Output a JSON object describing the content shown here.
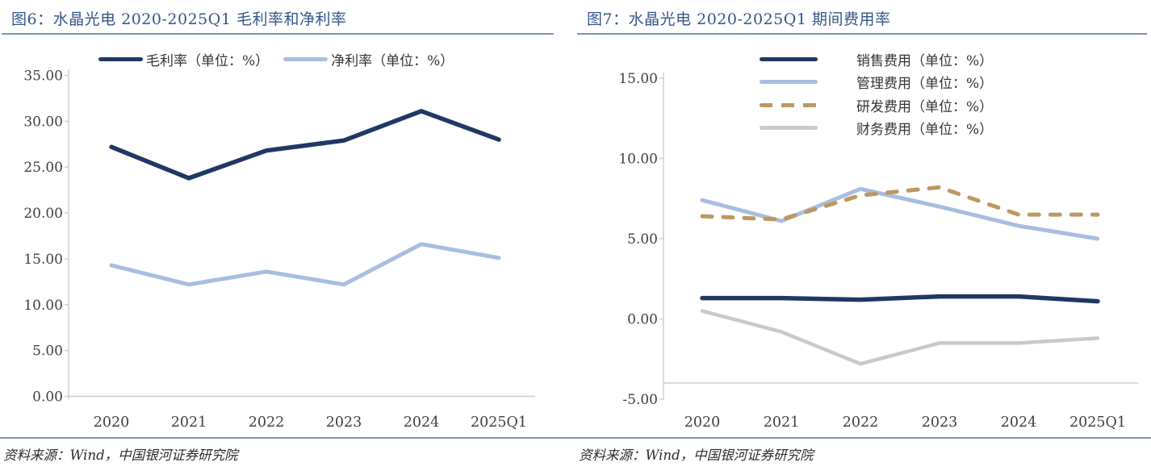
{
  "source_note": "资料来源：Wind，中国银河证券研究院",
  "chart_data": [
    {
      "type": "line",
      "title": "图6：水晶光电 2020-2025Q1 毛利率和净利率",
      "categories": [
        "2020",
        "2021",
        "2022",
        "2023",
        "2024",
        "2025Q1"
      ],
      "series": [
        {
          "name": "毛利率（单位：%）",
          "values": [
            27.2,
            23.8,
            26.8,
            27.9,
            31.1,
            28.0
          ],
          "color": "#1F3864",
          "style": "solid"
        },
        {
          "name": "净利率（单位：%）",
          "values": [
            14.3,
            12.2,
            13.6,
            12.2,
            16.6,
            15.1
          ],
          "color": "#A9BDE1",
          "style": "solid"
        }
      ],
      "ylim": [
        0,
        35
      ],
      "ytick_interval": 5,
      "ytick_labels": [
        "35.00",
        "30.00",
        "25.00",
        "20.00",
        "15.00",
        "10.00",
        "5.00",
        "0.00"
      ],
      "legend_position": "top-horizontal",
      "grid": false,
      "source": "资料来源：Wind，中国银河证券研究院"
    },
    {
      "type": "line",
      "title": "图7：水晶光电 2020-2025Q1 期间费用率",
      "categories": [
        "2020",
        "2021",
        "2022",
        "2023",
        "2024",
        "2025Q1"
      ],
      "series": [
        {
          "name": "销售费用（单位：%）",
          "values": [
            1.3,
            1.3,
            1.2,
            1.4,
            1.4,
            1.1
          ],
          "color": "#1F3864",
          "style": "solid"
        },
        {
          "name": "管理费用（单位：%）",
          "values": [
            7.4,
            6.1,
            8.1,
            7.0,
            5.8,
            5.0
          ],
          "color": "#A9BDE1",
          "style": "solid"
        },
        {
          "name": "研发费用（单位：%）",
          "values": [
            6.4,
            6.2,
            7.7,
            8.2,
            6.5,
            6.5
          ],
          "color": "#BD9860",
          "style": "dashed"
        },
        {
          "name": "财务费用（单位：%）",
          "values": [
            0.5,
            -0.8,
            -2.8,
            -1.5,
            -1.5,
            -1.2
          ],
          "color": "#C9C9C9",
          "style": "solid"
        }
      ],
      "ylim": [
        -5,
        15
      ],
      "ytick_interval": 5,
      "ytick_labels": [
        "15.00",
        "10.00",
        "5.00",
        "0.00",
        "-5.00"
      ],
      "legend_position": "top-vertical",
      "grid": false,
      "source": "资料来源：Wind，中国银河证券研究院"
    }
  ],
  "style": {
    "title_color": "#34568B",
    "rule_color": "#7F94B2",
    "footer_rule_color": "#8494B0",
    "axis_line_color": "#CDCDCD",
    "tick_text_color": "#3F3F3F"
  }
}
